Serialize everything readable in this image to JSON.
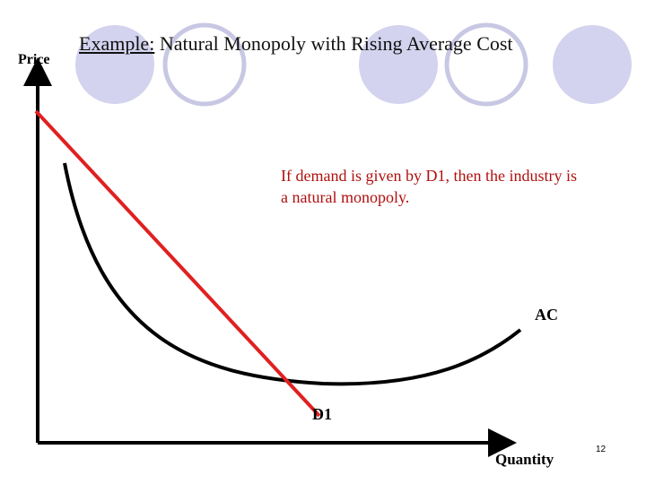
{
  "slide": {
    "title_prefix": "Example:",
    "title_rest": " Natural Monopoly with Rising Average Cost",
    "note": "If demand is given by D1, then the industry is a natural monopoly.",
    "page_number": "12",
    "colors": {
      "circle_fill": "#d3d3ef",
      "circle_outline": "#c8c8e4",
      "demand_line": "#e02020",
      "note_text": "#b01010",
      "axis": "#000000"
    }
  },
  "diagram": {
    "ylabel": "Price",
    "xlabel": "Quantity",
    "curve_labels": {
      "average_cost": "AC",
      "demand": "D1"
    }
  }
}
